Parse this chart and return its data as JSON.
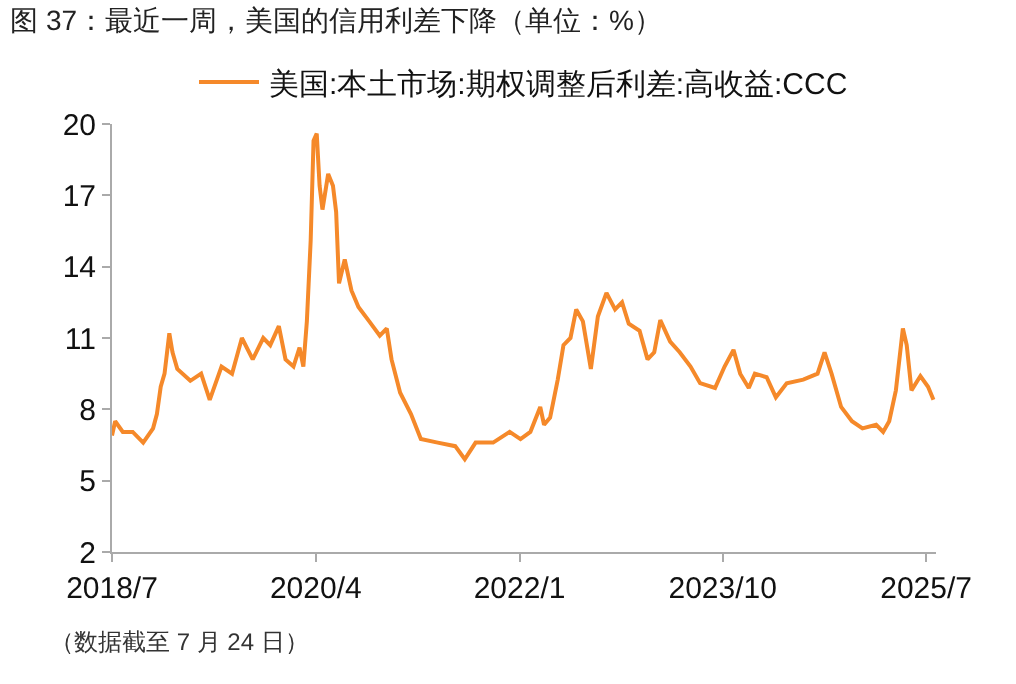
{
  "chart_data": {
    "type": "line",
    "title": "图 37：最近一周，美国的信用利差下降（单位：%）",
    "x": [
      "2018-07-01",
      "2018-07-11",
      "2018-08-04",
      "2018-09-04",
      "2018-10-07",
      "2018-11-07",
      "2018-11-19",
      "2018-12-01",
      "2018-12-13",
      "2018-12-28",
      "2019-01-07",
      "2019-01-22",
      "2019-03-04",
      "2019-04-07",
      "2019-05-04",
      "2019-06-10",
      "2019-07-13",
      "2019-08-13",
      "2019-09-16",
      "2019-10-19",
      "2019-11-10",
      "2019-12-07",
      "2019-12-28",
      "2020-01-22",
      "2020-02-10",
      "2020-02-22",
      "2020-03-04",
      "2020-03-16",
      "2020-03-25",
      "2020-04-04",
      "2020-04-13",
      "2020-04-22",
      "2020-05-10",
      "2020-05-25",
      "2020-06-04",
      "2020-06-13",
      "2020-07-01",
      "2020-07-22",
      "2020-08-13",
      "2020-09-16",
      "2020-10-19",
      "2020-11-10",
      "2020-11-25",
      "2020-12-22",
      "2021-01-25",
      "2021-02-25",
      "2021-04-19",
      "2021-06-13",
      "2021-07-13",
      "2021-08-16",
      "2021-10-10",
      "2021-12-01",
      "2022-01-04",
      "2022-02-04",
      "2022-03-07",
      "2022-03-19",
      "2022-04-07",
      "2022-05-01",
      "2022-05-19",
      "2022-06-10",
      "2022-06-28",
      "2022-07-19",
      "2022-08-13",
      "2022-09-04",
      "2022-10-01",
      "2022-10-28",
      "2022-11-19",
      "2022-12-10",
      "2023-01-13",
      "2023-02-07",
      "2023-02-28",
      "2023-03-19",
      "2023-04-19",
      "2023-05-19",
      "2023-06-22",
      "2023-07-22",
      "2023-09-07",
      "2023-10-07",
      "2023-11-04",
      "2023-11-25",
      "2023-12-22",
      "2024-01-10",
      "2024-02-16",
      "2024-03-16",
      "2024-04-19",
      "2024-06-10",
      "2024-07-25",
      "2024-08-16",
      "2024-09-07",
      "2024-10-07",
      "2024-11-10",
      "2024-12-13",
      "2025-01-25",
      "2025-02-16",
      "2025-03-07",
      "2025-03-28",
      "2025-04-19",
      "2025-05-01",
      "2025-05-16",
      "2025-06-13",
      "2025-07-07",
      "2025-07-24"
    ],
    "series": [
      {
        "name": "美国:本土市场:期权调整后利差:高收益:CCC",
        "color": "#f5892a",
        "values": [
          6.9,
          7.5,
          7.05,
          7.05,
          6.6,
          7.2,
          7.8,
          8.95,
          9.5,
          11.2,
          10.4,
          9.7,
          9.2,
          9.5,
          8.4,
          9.8,
          9.5,
          11.0,
          10.1,
          11.0,
          10.7,
          11.5,
          10.1,
          9.8,
          10.6,
          9.8,
          11.7,
          15.1,
          19.3,
          19.6,
          17.4,
          16.4,
          17.9,
          17.4,
          16.3,
          13.3,
          14.3,
          13.0,
          12.3,
          11.7,
          11.1,
          11.4,
          10.1,
          8.7,
          7.8,
          6.75,
          6.6,
          6.45,
          5.9,
          6.6,
          6.6,
          7.05,
          6.75,
          7.05,
          8.1,
          7.35,
          7.65,
          9.25,
          10.7,
          11.0,
          12.2,
          11.7,
          9.7,
          11.9,
          12.9,
          12.2,
          12.5,
          11.6,
          11.3,
          10.1,
          10.4,
          11.75,
          10.85,
          10.4,
          9.8,
          9.1,
          8.9,
          9.8,
          10.5,
          9.5,
          8.9,
          9.5,
          9.35,
          8.5,
          9.1,
          9.25,
          9.5,
          10.4,
          9.5,
          8.1,
          7.5,
          7.2,
          7.35,
          7.05,
          7.5,
          8.8,
          11.4,
          10.7,
          8.8,
          9.4,
          8.95,
          8.4
        ]
      }
    ],
    "xlim": [
      "2018-07-01",
      "2025-08-01"
    ],
    "xticks": [
      {
        "value": "2018-07-01",
        "label": "2018/7"
      },
      {
        "value": "2020-04-01",
        "label": "2020/4"
      },
      {
        "value": "2022-01-01",
        "label": "2022/1"
      },
      {
        "value": "2023-10-01",
        "label": "2023/10"
      },
      {
        "value": "2025-07-01",
        "label": "2025/7"
      }
    ],
    "ylim": [
      2,
      20
    ],
    "yticks": [
      2,
      5,
      8,
      11,
      14,
      17,
      20
    ],
    "grid": false,
    "legend": "top",
    "marker": "none",
    "line_style": "solid",
    "annotations": [
      "（数据截至 7 月 24 日）"
    ]
  }
}
